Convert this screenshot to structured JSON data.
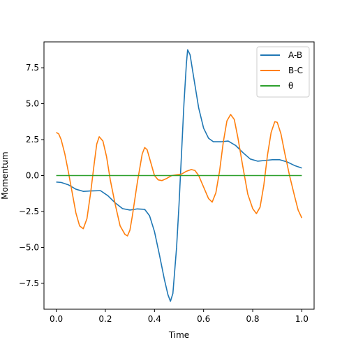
{
  "chart_data": {
    "type": "line",
    "title": "",
    "xlabel": "Time",
    "ylabel": "Momentum",
    "xlim": [
      -0.05,
      1.05
    ],
    "ylim": [
      -9.3,
      9.3
    ],
    "grid": false,
    "legend_position": "top-right",
    "x_ticks": [
      0.0,
      0.2,
      0.4,
      0.6,
      0.8,
      1.0
    ],
    "x_tick_labels": [
      "0.0",
      "0.2",
      "0.4",
      "0.6",
      "0.8",
      "1.0"
    ],
    "y_ticks": [
      -7.5,
      -5.0,
      -2.5,
      0.0,
      2.5,
      5.0,
      7.5
    ],
    "y_tick_labels": [
      "−7.5",
      "−5.0",
      "−2.5",
      "0.0",
      "2.5",
      "5.0",
      "7.5"
    ],
    "series": [
      {
        "name": "A-B",
        "color": "#1f77b4",
        "points": [
          [
            0.0,
            -0.45
          ],
          [
            0.02,
            -0.48
          ],
          [
            0.05,
            -0.65
          ],
          [
            0.08,
            -0.95
          ],
          [
            0.11,
            -1.1
          ],
          [
            0.14,
            -1.07
          ],
          [
            0.18,
            -1.05
          ],
          [
            0.21,
            -1.4
          ],
          [
            0.24,
            -1.9
          ],
          [
            0.27,
            -2.3
          ],
          [
            0.3,
            -2.4
          ],
          [
            0.33,
            -2.32
          ],
          [
            0.36,
            -2.35
          ],
          [
            0.38,
            -2.8
          ],
          [
            0.4,
            -3.9
          ],
          [
            0.42,
            -5.5
          ],
          [
            0.44,
            -7.2
          ],
          [
            0.455,
            -8.3
          ],
          [
            0.465,
            -8.75
          ],
          [
            0.475,
            -8.2
          ],
          [
            0.49,
            -5.0
          ],
          [
            0.5,
            -2.0
          ],
          [
            0.51,
            1.5
          ],
          [
            0.52,
            5.0
          ],
          [
            0.53,
            7.8
          ],
          [
            0.535,
            8.75
          ],
          [
            0.545,
            8.4
          ],
          [
            0.56,
            6.8
          ],
          [
            0.58,
            4.7
          ],
          [
            0.6,
            3.3
          ],
          [
            0.62,
            2.6
          ],
          [
            0.64,
            2.35
          ],
          [
            0.67,
            2.35
          ],
          [
            0.7,
            2.4
          ],
          [
            0.73,
            2.1
          ],
          [
            0.76,
            1.6
          ],
          [
            0.79,
            1.15
          ],
          [
            0.82,
            1.0
          ],
          [
            0.85,
            1.05
          ],
          [
            0.88,
            1.1
          ],
          [
            0.91,
            1.1
          ],
          [
            0.94,
            0.95
          ],
          [
            0.97,
            0.7
          ],
          [
            1.0,
            0.52
          ]
        ]
      },
      {
        "name": "B-C",
        "color": "#ff7f0e",
        "points": [
          [
            0.0,
            3.0
          ],
          [
            0.01,
            2.9
          ],
          [
            0.02,
            2.5
          ],
          [
            0.035,
            1.5
          ],
          [
            0.05,
            0.2
          ],
          [
            0.065,
            -1.2
          ],
          [
            0.08,
            -2.6
          ],
          [
            0.095,
            -3.5
          ],
          [
            0.11,
            -3.7
          ],
          [
            0.125,
            -3.0
          ],
          [
            0.14,
            -1.2
          ],
          [
            0.155,
            0.9
          ],
          [
            0.165,
            2.2
          ],
          [
            0.175,
            2.7
          ],
          [
            0.19,
            2.4
          ],
          [
            0.205,
            1.3
          ],
          [
            0.22,
            -0.3
          ],
          [
            0.24,
            -2.0
          ],
          [
            0.26,
            -3.5
          ],
          [
            0.28,
            -4.1
          ],
          [
            0.29,
            -4.2
          ],
          [
            0.3,
            -3.8
          ],
          [
            0.31,
            -2.8
          ],
          [
            0.33,
            -0.5
          ],
          [
            0.35,
            1.5
          ],
          [
            0.36,
            1.95
          ],
          [
            0.37,
            1.8
          ],
          [
            0.385,
            0.9
          ],
          [
            0.4,
            0.0
          ],
          [
            0.415,
            -0.3
          ],
          [
            0.43,
            -0.35
          ],
          [
            0.45,
            -0.2
          ],
          [
            0.47,
            0.0
          ],
          [
            0.49,
            0.05
          ],
          [
            0.51,
            0.1
          ],
          [
            0.53,
            0.3
          ],
          [
            0.55,
            0.42
          ],
          [
            0.565,
            0.35
          ],
          [
            0.58,
            0.0
          ],
          [
            0.6,
            -0.8
          ],
          [
            0.62,
            -1.6
          ],
          [
            0.635,
            -1.85
          ],
          [
            0.65,
            -1.2
          ],
          [
            0.665,
            0.3
          ],
          [
            0.68,
            2.3
          ],
          [
            0.695,
            3.8
          ],
          [
            0.71,
            4.25
          ],
          [
            0.725,
            3.9
          ],
          [
            0.74,
            2.6
          ],
          [
            0.76,
            0.6
          ],
          [
            0.78,
            -1.3
          ],
          [
            0.8,
            -2.3
          ],
          [
            0.815,
            -2.65
          ],
          [
            0.83,
            -2.2
          ],
          [
            0.845,
            -0.7
          ],
          [
            0.86,
            1.4
          ],
          [
            0.875,
            3.0
          ],
          [
            0.89,
            3.75
          ],
          [
            0.9,
            3.7
          ],
          [
            0.915,
            2.9
          ],
          [
            0.93,
            1.6
          ],
          [
            0.95,
            0.0
          ],
          [
            0.97,
            -1.4
          ],
          [
            0.985,
            -2.4
          ],
          [
            1.0,
            -2.95
          ]
        ]
      },
      {
        "name": "θ",
        "color": "#2ca02c",
        "points": [
          [
            0.0,
            0.0
          ],
          [
            1.0,
            0.0
          ]
        ]
      }
    ]
  }
}
